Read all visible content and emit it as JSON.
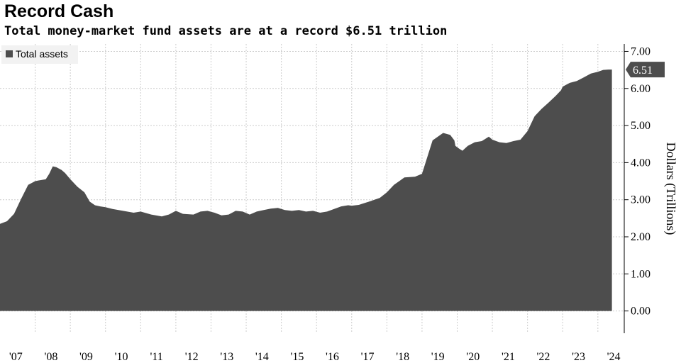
{
  "chart_data": {
    "type": "area",
    "title": "Record Cash",
    "subtitle": "Total money-market fund assets are at a record $6.51 trillion",
    "ylabel": "Dollars (Trillions)",
    "xlabel": "",
    "ylim": [
      -0.6,
      7.2
    ],
    "yticks": [
      0,
      1,
      2,
      3,
      4,
      5,
      6,
      7
    ],
    "ytick_labels": [
      "0.00",
      "1.00",
      "2.00",
      "3.00",
      "4.00",
      "5.00",
      "6.00",
      "7.00"
    ],
    "xticks": [
      2007,
      2008,
      2009,
      2010,
      2011,
      2012,
      2013,
      2014,
      2015,
      2016,
      2017,
      2018,
      2019,
      2020,
      2021,
      2022,
      2023,
      2024
    ],
    "xtick_labels": [
      "'07",
      "'08",
      "'09",
      "'10",
      "'11",
      "'12",
      "'13",
      "'14",
      "'15",
      "'16",
      "'17",
      "'18",
      "'19",
      "'20",
      "'21",
      "'22",
      "'23",
      "'24"
    ],
    "xlim": [
      2007.0,
      2024.75
    ],
    "grid": true,
    "legend_position": "top-left",
    "colors": {
      "series": "#4d4d4d",
      "grid": "#cccccc",
      "end_label_bg": "#4d4d4d",
      "legend_bg": "#f2f2f2"
    },
    "series": [
      {
        "name": "Total assets",
        "end_label": "6.51",
        "x": [
          2007.0,
          2007.2,
          2007.4,
          2007.6,
          2007.8,
          2008.0,
          2008.1,
          2008.3,
          2008.4,
          2008.5,
          2008.6,
          2008.75,
          2008.85,
          2009.0,
          2009.2,
          2009.4,
          2009.55,
          2009.7,
          2009.85,
          2010.0,
          2010.2,
          2010.5,
          2010.8,
          2011.0,
          2011.3,
          2011.6,
          2011.8,
          2012.0,
          2012.2,
          2012.5,
          2012.7,
          2012.9,
          2013.1,
          2013.3,
          2013.5,
          2013.7,
          2013.9,
          2014.1,
          2014.3,
          2014.5,
          2014.7,
          2014.9,
          2015.1,
          2015.3,
          2015.5,
          2015.7,
          2015.9,
          2016.1,
          2016.3,
          2016.5,
          2016.7,
          2016.9,
          2017.0,
          2017.2,
          2017.5,
          2017.8,
          2018.0,
          2018.2,
          2018.5,
          2018.8,
          2019.0,
          2019.3,
          2019.6,
          2019.8,
          2019.92,
          2019.95,
          2020.05,
          2020.15,
          2020.3,
          2020.5,
          2020.7,
          2020.9,
          2021.0,
          2021.2,
          2021.4,
          2021.6,
          2021.8,
          2022.0,
          2022.2,
          2022.4,
          2022.6,
          2022.8,
          2022.95,
          2023.0,
          2023.1,
          2023.2,
          2023.4,
          2023.6,
          2023.8,
          2024.0,
          2024.15,
          2024.3,
          2024.4
        ],
        "values": [
          2.35,
          2.42,
          2.62,
          3.02,
          3.4,
          3.5,
          3.52,
          3.55,
          3.7,
          3.9,
          3.88,
          3.8,
          3.72,
          3.55,
          3.35,
          3.2,
          2.95,
          2.85,
          2.82,
          2.8,
          2.75,
          2.7,
          2.65,
          2.68,
          2.6,
          2.55,
          2.6,
          2.7,
          2.62,
          2.6,
          2.68,
          2.7,
          2.65,
          2.58,
          2.6,
          2.7,
          2.68,
          2.6,
          2.68,
          2.72,
          2.76,
          2.78,
          2.72,
          2.7,
          2.72,
          2.68,
          2.7,
          2.65,
          2.68,
          2.75,
          2.82,
          2.85,
          2.84,
          2.86,
          2.95,
          3.05,
          3.2,
          3.4,
          3.6,
          3.62,
          3.7,
          4.6,
          4.8,
          4.75,
          4.6,
          4.45,
          4.38,
          4.32,
          4.45,
          4.55,
          4.58,
          4.7,
          4.62,
          4.55,
          4.53,
          4.58,
          4.62,
          4.85,
          5.25,
          5.45,
          5.62,
          5.8,
          5.95,
          6.05,
          6.1,
          6.15,
          6.2,
          6.3,
          6.4,
          6.45,
          6.5,
          6.51,
          6.51
        ]
      }
    ]
  }
}
